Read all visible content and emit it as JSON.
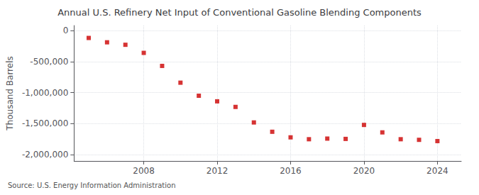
{
  "chart_data": {
    "type": "scatter",
    "title": "Annual U.S. Refinery Net Input of Conventional Gasoline Blending Components",
    "ylabel": "Thousand Barrels",
    "annotation": "Source: U.S. Energy Information Administration",
    "x": [
      2005,
      2006,
      2007,
      2008,
      2009,
      2010,
      2011,
      2012,
      2013,
      2014,
      2015,
      2016,
      2017,
      2018,
      2019,
      2020,
      2021,
      2022,
      2023,
      2024
    ],
    "values": [
      -120000,
      -190000,
      -230000,
      -360000,
      -570000,
      -840000,
      -1050000,
      -1140000,
      -1230000,
      -1480000,
      -1630000,
      -1720000,
      -1750000,
      -1740000,
      -1745000,
      -1520000,
      -1640000,
      -1750000,
      -1760000,
      -1780000
    ],
    "color": "#cc0000",
    "marker": "square",
    "xlim": [
      2004.2,
      2025.3
    ],
    "xticks": [
      2008,
      2012,
      2016,
      2020,
      2024
    ],
    "ylim": [
      -2100000,
      80000
    ],
    "yticks": [
      0,
      {
        "value": -500000,
        "label": "-500,000"
      },
      {
        "value": -1000000,
        "label": "-1,000,000"
      },
      {
        "value": -1500000,
        "label": "-1,500,000"
      },
      {
        "value": -2000000,
        "label": "-2,000,000"
      }
    ],
    "grid": true
  }
}
